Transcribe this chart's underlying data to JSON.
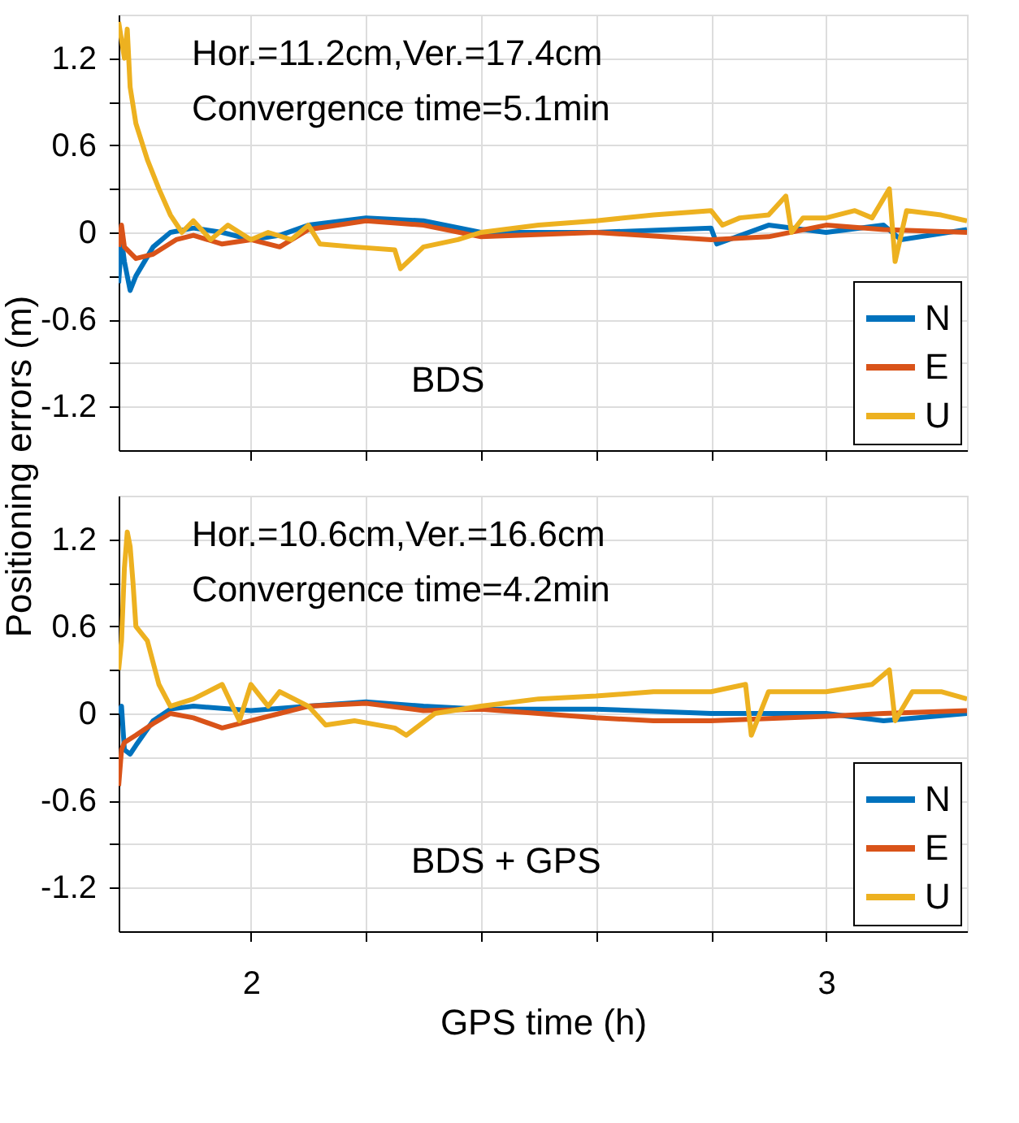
{
  "chart_data": [
    {
      "type": "line",
      "xlim": [
        1.77,
        3.245
      ],
      "xticks": [
        {
          "value": 2,
          "label": null
        },
        {
          "value": 2.2,
          "label": null
        },
        {
          "value": 2.4,
          "label": null
        },
        {
          "value": 2.6,
          "label": null
        },
        {
          "value": 2.8,
          "label": null
        },
        {
          "value": 3,
          "label": null
        }
      ],
      "ylim": [
        -1.5,
        1.5
      ],
      "yticks": [
        -1.2,
        {
          "value": -0.9,
          "label": null
        },
        -0.6,
        {
          "value": -0.3,
          "label": null
        },
        0,
        {
          "value": 0.3,
          "label": null
        },
        0.6,
        {
          "value": 0.9,
          "label": null
        },
        1.2
      ],
      "ylabel": "Positioning errors (m)",
      "grid": true,
      "legend": "bottom right",
      "tick_labels": "y",
      "line_style": "solid",
      "annotations": [
        "Hor.=11.2cm,Ver.=17.4cm",
        "Convergence time=5.1min",
        "BDS"
      ],
      "series": [
        {
          "name": "N",
          "color": "#0072bd",
          "x": [
            1.77,
            1.775,
            1.78,
            1.79,
            1.8,
            1.83,
            1.86,
            1.9,
            1.95,
            2.0,
            2.05,
            2.1,
            2.2,
            2.3,
            2.4,
            2.6,
            2.8,
            2.81,
            2.9,
            3.0,
            3.1,
            3.13,
            3.245
          ],
          "values": [
            -0.35,
            -0.05,
            -0.2,
            -0.4,
            -0.3,
            -0.1,
            0.0,
            0.03,
            0.0,
            -0.05,
            -0.02,
            0.05,
            0.1,
            0.08,
            0.0,
            0.0,
            0.03,
            -0.08,
            0.05,
            0.0,
            0.05,
            -0.05,
            0.02
          ]
        },
        {
          "name": "E",
          "color": "#d95319",
          "x": [
            1.77,
            1.775,
            1.78,
            1.8,
            1.83,
            1.87,
            1.9,
            1.95,
            2.0,
            2.05,
            2.1,
            2.2,
            2.3,
            2.4,
            2.6,
            2.8,
            2.9,
            3.0,
            3.1,
            3.245
          ],
          "values": [
            -0.1,
            0.05,
            -0.1,
            -0.18,
            -0.15,
            -0.05,
            -0.02,
            -0.08,
            -0.05,
            -0.1,
            0.02,
            0.08,
            0.05,
            -0.03,
            0.0,
            -0.05,
            -0.03,
            0.05,
            0.02,
            0.0
          ]
        },
        {
          "name": "U",
          "color": "#edb120",
          "x": [
            1.77,
            1.78,
            1.785,
            1.79,
            1.8,
            1.82,
            1.84,
            1.86,
            1.88,
            1.9,
            1.93,
            1.96,
            2.0,
            2.03,
            2.07,
            2.1,
            2.12,
            2.18,
            2.25,
            2.26,
            2.3,
            2.36,
            2.4,
            2.5,
            2.6,
            2.7,
            2.8,
            2.82,
            2.85,
            2.9,
            2.93,
            2.94,
            2.96,
            3.0,
            3.05,
            3.08,
            3.11,
            3.12,
            3.14,
            3.2,
            3.245
          ],
          "values": [
            1.45,
            1.2,
            1.4,
            1.0,
            0.75,
            0.5,
            0.3,
            0.12,
            0.0,
            0.08,
            -0.05,
            0.05,
            -0.05,
            0.0,
            -0.05,
            0.05,
            -0.08,
            -0.1,
            -0.12,
            -0.25,
            -0.1,
            -0.05,
            0.0,
            0.05,
            0.08,
            0.12,
            0.15,
            0.05,
            0.1,
            0.12,
            0.25,
            0.0,
            0.1,
            0.1,
            0.15,
            0.1,
            0.3,
            -0.2,
            0.15,
            0.12,
            0.08
          ]
        }
      ]
    },
    {
      "type": "line",
      "xlim": [
        1.77,
        3.245
      ],
      "xticks": [
        2,
        {
          "value": 2.2,
          "label": null
        },
        {
          "value": 2.4,
          "label": null
        },
        {
          "value": 2.6,
          "label": null
        },
        {
          "value": 2.8,
          "label": null
        },
        3
      ],
      "ylim": [
        -1.5,
        1.5
      ],
      "yticks": [
        -1.2,
        {
          "value": -0.9,
          "label": null
        },
        -0.6,
        {
          "value": -0.3,
          "label": null
        },
        0,
        {
          "value": 0.3,
          "label": null
        },
        0.6,
        {
          "value": 0.9,
          "label": null
        },
        1.2
      ],
      "xlabel": "GPS time (h)",
      "grid": true,
      "legend": "bottom right",
      "line_style": "solid",
      "annotations": [
        "Hor.=10.6cm,Ver.=16.6cm",
        "Convergence time=4.2min",
        "BDS + GPS"
      ],
      "series": [
        {
          "name": "N",
          "color": "#0072bd",
          "x": [
            1.77,
            1.775,
            1.78,
            1.79,
            1.8,
            1.83,
            1.86,
            1.9,
            2.0,
            2.1,
            2.2,
            2.3,
            2.4,
            2.6,
            2.8,
            3.0,
            3.1,
            3.245
          ],
          "values": [
            0.0,
            0.05,
            -0.25,
            -0.28,
            -0.22,
            -0.05,
            0.03,
            0.05,
            0.02,
            0.05,
            0.08,
            0.05,
            0.03,
            0.03,
            0.0,
            0.0,
            -0.05,
            0.0
          ]
        },
        {
          "name": "E",
          "color": "#d95319",
          "x": [
            1.77,
            1.775,
            1.78,
            1.8,
            1.83,
            1.86,
            1.9,
            1.95,
            2.0,
            2.05,
            2.1,
            2.2,
            2.3,
            2.4,
            2.5,
            2.6,
            2.7,
            2.8,
            3.0,
            3.1,
            3.245
          ],
          "values": [
            -0.5,
            -0.25,
            -0.2,
            -0.15,
            -0.07,
            0.0,
            -0.03,
            -0.1,
            -0.05,
            0.0,
            0.05,
            0.07,
            0.02,
            0.03,
            0.0,
            -0.03,
            -0.05,
            -0.05,
            -0.02,
            0.0,
            0.02
          ]
        },
        {
          "name": "U",
          "color": "#edb120",
          "x": [
            1.77,
            1.775,
            1.78,
            1.785,
            1.79,
            1.795,
            1.8,
            1.82,
            1.84,
            1.86,
            1.9,
            1.95,
            1.98,
            2.0,
            2.03,
            2.05,
            2.1,
            2.13,
            2.18,
            2.25,
            2.27,
            2.32,
            2.4,
            2.5,
            2.6,
            2.7,
            2.8,
            2.86,
            2.87,
            2.9,
            3.0,
            3.08,
            3.11,
            3.12,
            3.15,
            3.2,
            3.245
          ],
          "values": [
            0.3,
            0.5,
            1.0,
            1.25,
            1.15,
            0.9,
            0.6,
            0.5,
            0.2,
            0.05,
            0.1,
            0.2,
            -0.05,
            0.2,
            0.05,
            0.15,
            0.05,
            -0.08,
            -0.05,
            -0.1,
            -0.15,
            0.0,
            0.05,
            0.1,
            0.12,
            0.15,
            0.15,
            0.2,
            -0.15,
            0.15,
            0.15,
            0.2,
            0.3,
            -0.05,
            0.15,
            0.15,
            0.1
          ]
        }
      ]
    }
  ]
}
